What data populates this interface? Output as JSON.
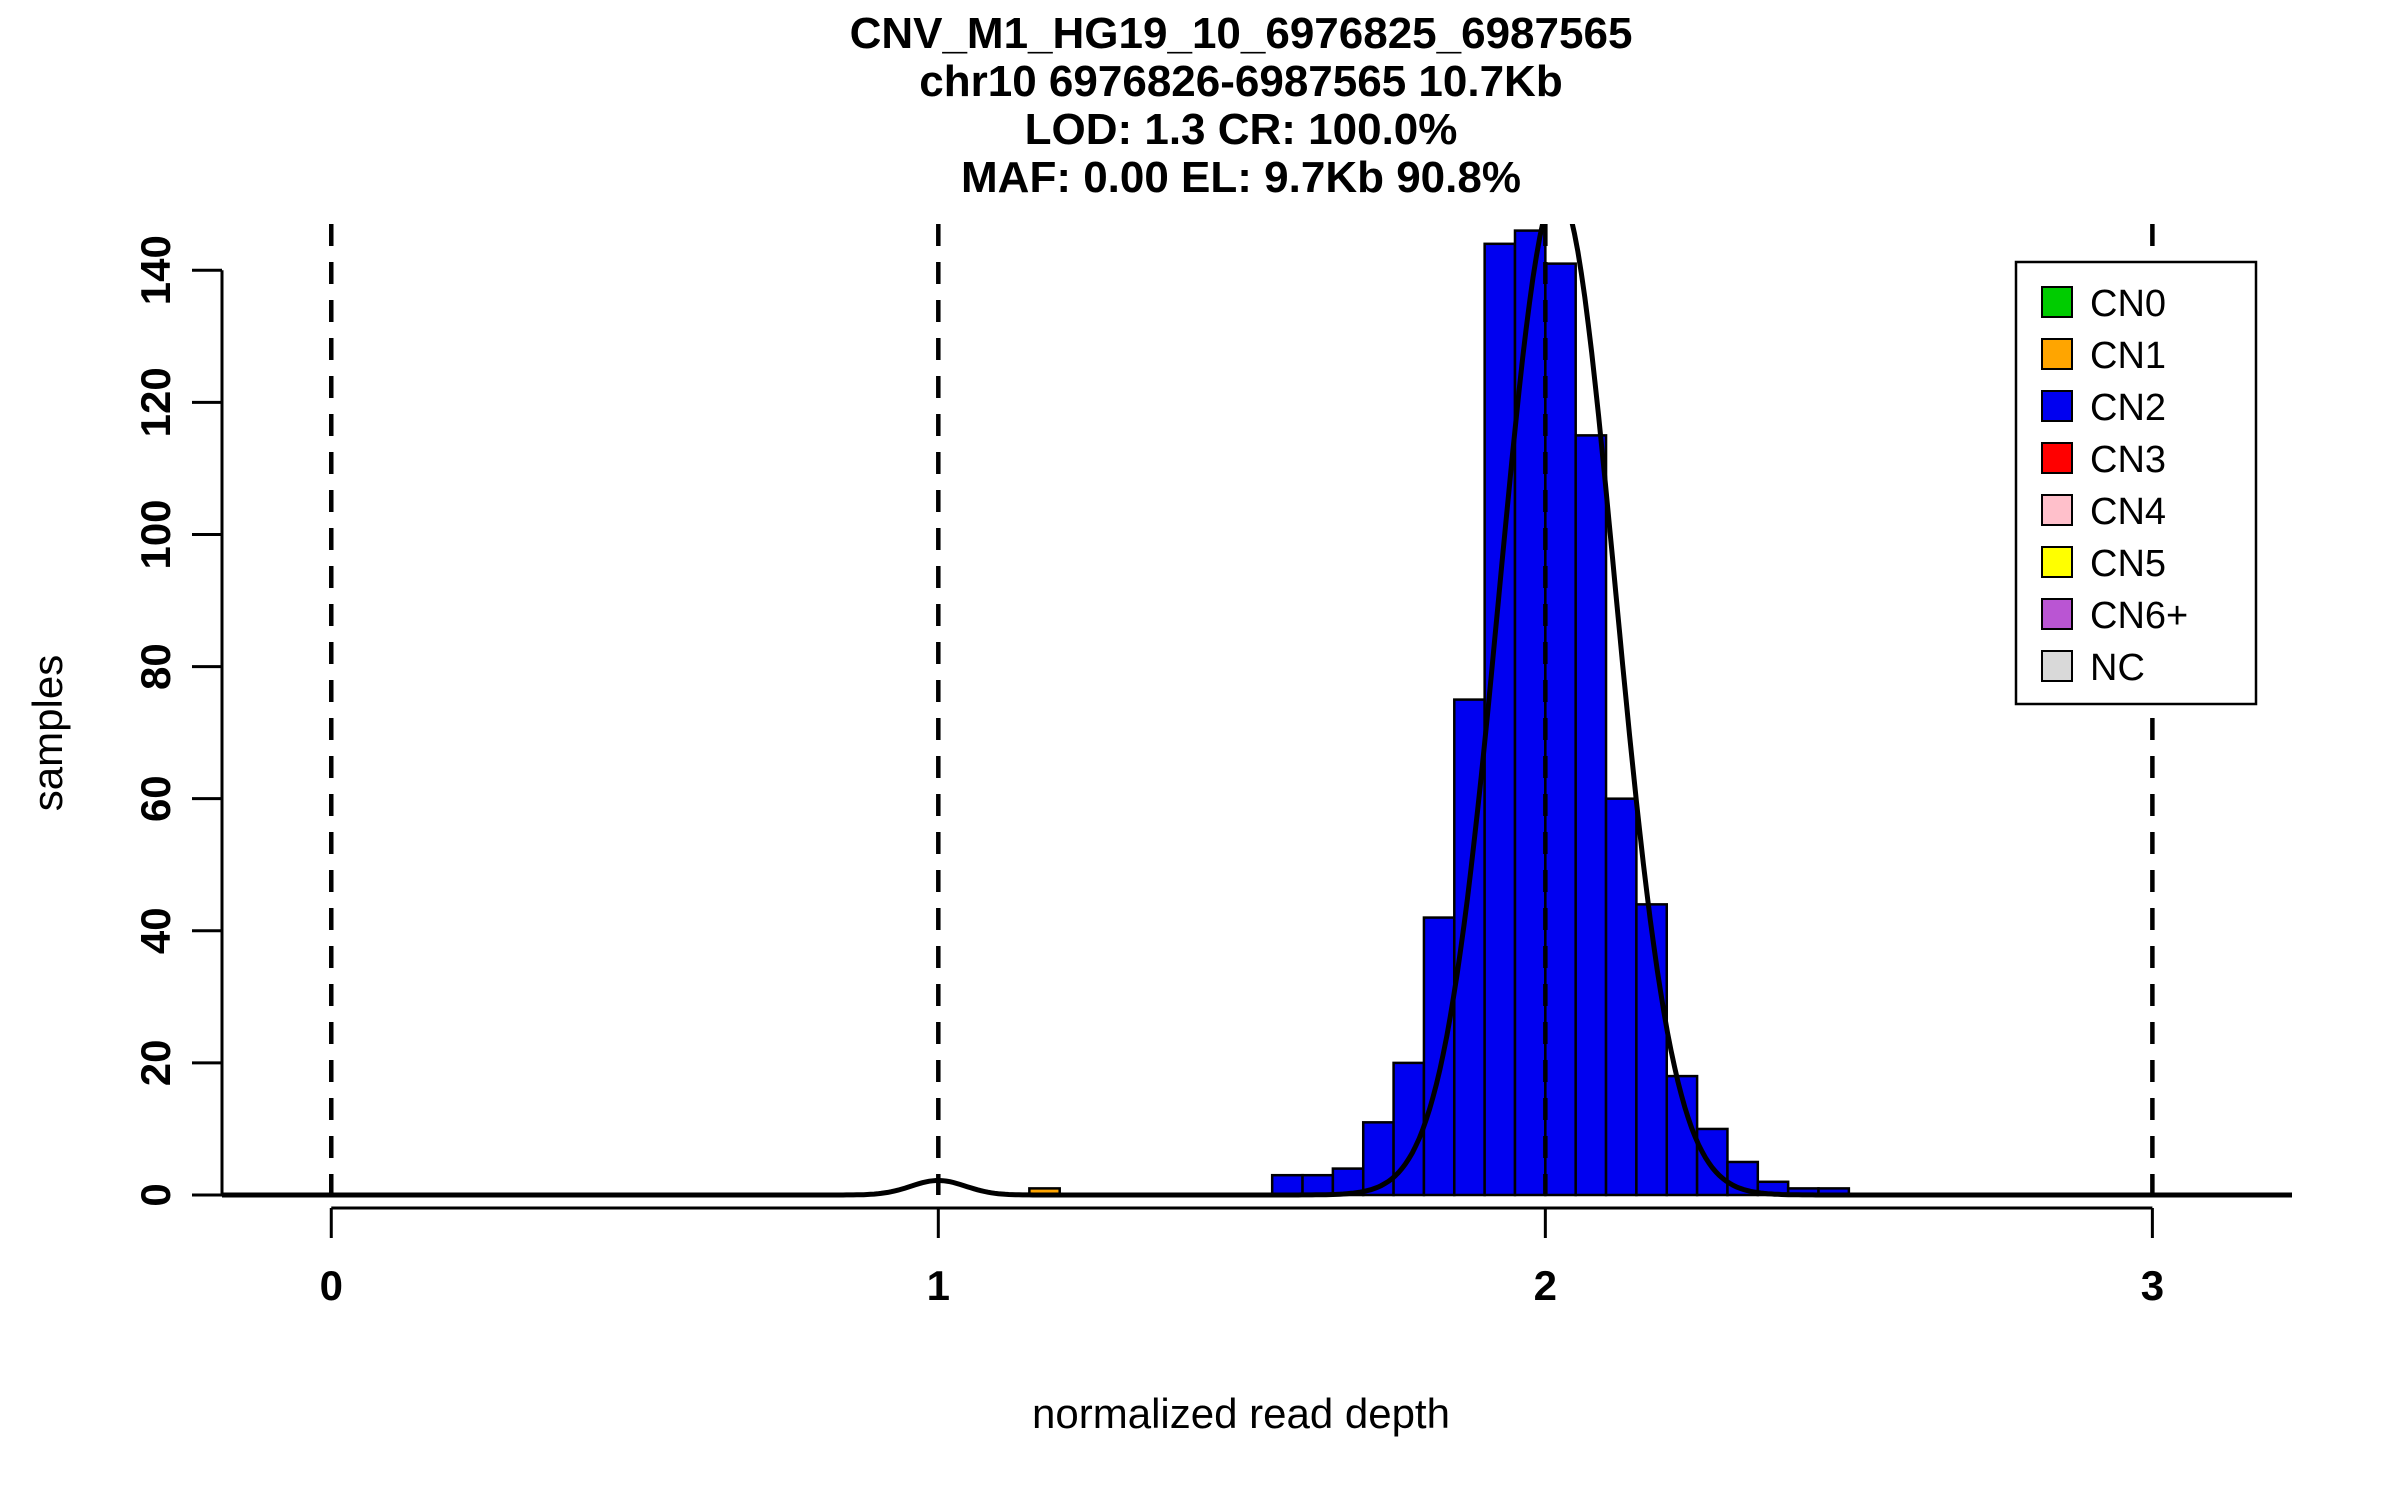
{
  "chart_data": {
    "type": "bar",
    "subtype": "histogram_with_gaussian_fit",
    "title_lines": [
      "CNV_M1_HG19_10_6976825_6987565",
      "chr10 6976826-6987565 10.7Kb",
      "LOD: 1.3 CR: 100.0%",
      "MAF: 0.00 EL: 9.7Kb 90.8%"
    ],
    "xlabel": "normalized read depth",
    "ylabel": "samples",
    "xlim": [
      -0.18,
      3.23
    ],
    "ylim": [
      0,
      147
    ],
    "x_ticks": [
      0,
      1,
      2,
      3
    ],
    "y_ticks": [
      0,
      20,
      40,
      60,
      80,
      100,
      120,
      140
    ],
    "guide_lines_x": [
      0,
      1,
      2,
      3
    ],
    "guide_line_style": "dashed",
    "bin_width": 0.05,
    "bins": [
      {
        "x0": 1.15,
        "count": 1,
        "cn": "CN1"
      },
      {
        "x0": 1.55,
        "count": 3,
        "cn": "CN2"
      },
      {
        "x0": 1.6,
        "count": 3,
        "cn": "CN2"
      },
      {
        "x0": 1.65,
        "count": 4,
        "cn": "CN2"
      },
      {
        "x0": 1.7,
        "count": 11,
        "cn": "CN2"
      },
      {
        "x0": 1.75,
        "count": 20,
        "cn": "CN2"
      },
      {
        "x0": 1.8,
        "count": 42,
        "cn": "CN2"
      },
      {
        "x0": 1.85,
        "count": 75,
        "cn": "CN2"
      },
      {
        "x0": 1.9,
        "count": 144,
        "cn": "CN2"
      },
      {
        "x0": 1.95,
        "count": 146,
        "cn": "CN2"
      },
      {
        "x0": 2.0,
        "count": 141,
        "cn": "CN2"
      },
      {
        "x0": 2.05,
        "count": 115,
        "cn": "CN2"
      },
      {
        "x0": 2.1,
        "count": 60,
        "cn": "CN2"
      },
      {
        "x0": 2.15,
        "count": 44,
        "cn": "CN2"
      },
      {
        "x0": 2.2,
        "count": 18,
        "cn": "CN2"
      },
      {
        "x0": 2.25,
        "count": 10,
        "cn": "CN2"
      },
      {
        "x0": 2.3,
        "count": 5,
        "cn": "CN2"
      },
      {
        "x0": 2.35,
        "count": 2,
        "cn": "CN2"
      },
      {
        "x0": 2.4,
        "count": 1,
        "cn": "CN2"
      },
      {
        "x0": 2.45,
        "count": 1,
        "cn": "CN2"
      }
    ],
    "fit_curve": {
      "color": "#000000",
      "components": [
        {
          "mean": 2.02,
          "sd": 0.095,
          "peak": 152
        },
        {
          "mean": 1.0,
          "sd": 0.045,
          "peak": 2.2
        }
      ]
    },
    "legend": {
      "entries": [
        {
          "label": "CN0",
          "color": "#00CC00"
        },
        {
          "label": "CN1",
          "color": "#FFA500"
        },
        {
          "label": "CN2",
          "color": "#0000F0"
        },
        {
          "label": "CN3",
          "color": "#FF0000"
        },
        {
          "label": "CN4",
          "color": "#FFC0CB"
        },
        {
          "label": "CN5",
          "color": "#FFFF00"
        },
        {
          "label": "CN6+",
          "color": "#BA55D3"
        },
        {
          "label": "NC",
          "color": "#D9D9D9"
        }
      ]
    }
  }
}
